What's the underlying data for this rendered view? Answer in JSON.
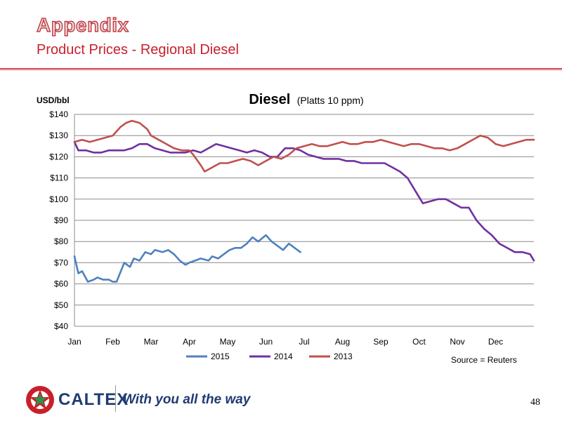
{
  "header": {
    "title": "Appendix",
    "subtitle": "Product Prices - Regional Diesel"
  },
  "chart_data": {
    "type": "line",
    "title": "Diesel",
    "title_note": "(Platts 10 ppm)",
    "ylabel": "USD/bbl",
    "ylim": [
      40,
      140
    ],
    "y_ticks": [
      "$40",
      "$50",
      "$60",
      "$70",
      "$80",
      "$90",
      "$100",
      "$110",
      "$120",
      "$130",
      "$140"
    ],
    "x_ticks": [
      "Jan",
      "Feb",
      "Mar",
      "Apr",
      "May",
      "Jun",
      "Jul",
      "Aug",
      "Sep",
      "Oct",
      "Nov",
      "Dec"
    ],
    "x_unit": "month (0 = start of Jan, 12 = end of Dec)",
    "source_note": "Source = Reuters",
    "grid": "horizontal",
    "legend": "bottom",
    "series": [
      {
        "name": "2015",
        "color": "#4f81bd",
        "x": [
          0,
          0.1,
          0.2,
          0.35,
          0.5,
          0.6,
          0.75,
          0.9,
          1.0,
          1.1,
          1.3,
          1.45,
          1.55,
          1.7,
          1.85,
          2.0,
          2.1,
          2.3,
          2.45,
          2.6,
          2.75,
          2.9,
          3.0,
          3.15,
          3.3,
          3.5,
          3.6,
          3.75,
          3.9,
          4.05,
          4.2,
          4.35,
          4.5,
          4.65,
          4.8,
          5.0,
          5.15,
          5.3,
          5.45,
          5.6,
          5.75,
          5.9
        ],
        "values": [
          73,
          65,
          66,
          61,
          62,
          63,
          62,
          62,
          61,
          61,
          70,
          68,
          72,
          71,
          75,
          74,
          76,
          75,
          76,
          74,
          71,
          69,
          70,
          71,
          72,
          71,
          73,
          72,
          74,
          76,
          77,
          77,
          79,
          82,
          80,
          83,
          80,
          78,
          76,
          79,
          77,
          75
        ]
      },
      {
        "name": "2014",
        "color": "#7030a0",
        "x": [
          0,
          0.1,
          0.3,
          0.5,
          0.7,
          0.9,
          1.1,
          1.3,
          1.5,
          1.7,
          1.9,
          2.1,
          2.3,
          2.5,
          2.7,
          2.9,
          3.1,
          3.3,
          3.5,
          3.7,
          3.9,
          4.1,
          4.3,
          4.5,
          4.7,
          4.9,
          5.1,
          5.3,
          5.5,
          5.7,
          5.9,
          6.1,
          6.3,
          6.5,
          6.7,
          6.9,
          7.1,
          7.3,
          7.5,
          7.7,
          7.9,
          8.1,
          8.3,
          8.5,
          8.7,
          8.9,
          9.1,
          9.3,
          9.5,
          9.7,
          9.9,
          10.1,
          10.3,
          10.5,
          10.7,
          10.9,
          11.1,
          11.3,
          11.5,
          11.7,
          11.9,
          12.0
        ],
        "values": [
          127,
          123,
          123,
          122,
          122,
          123,
          123,
          123,
          124,
          126,
          126,
          124,
          123,
          122,
          122,
          122,
          123,
          122,
          124,
          126,
          125,
          124,
          123,
          122,
          123,
          122,
          120,
          120,
          124,
          124,
          123,
          121,
          120,
          119,
          119,
          119,
          118,
          118,
          117,
          117,
          117,
          117,
          115,
          113,
          110,
          104,
          98,
          99,
          100,
          100,
          98,
          96,
          96,
          90,
          86,
          83,
          79,
          77,
          75,
          75,
          74,
          71
        ]
      },
      {
        "name": "2013",
        "color": "#c0504d",
        "x": [
          0,
          0.2,
          0.4,
          0.6,
          0.8,
          1.0,
          1.2,
          1.35,
          1.5,
          1.7,
          1.9,
          2.0,
          2.2,
          2.4,
          2.6,
          2.8,
          3.0,
          3.1,
          3.3,
          3.4,
          3.6,
          3.8,
          4.0,
          4.2,
          4.4,
          4.6,
          4.8,
          5.0,
          5.2,
          5.4,
          5.6,
          5.8,
          6.0,
          6.2,
          6.4,
          6.6,
          6.8,
          7.0,
          7.2,
          7.4,
          7.6,
          7.8,
          8.0,
          8.2,
          8.4,
          8.6,
          8.8,
          9.0,
          9.2,
          9.4,
          9.6,
          9.8,
          10.0,
          10.2,
          10.4,
          10.6,
          10.8,
          11.0,
          11.2,
          11.4,
          11.6,
          11.8,
          12.0
        ],
        "values": [
          127,
          128,
          127,
          128,
          129,
          130,
          134,
          136,
          137,
          136,
          133,
          130,
          128,
          126,
          124,
          123,
          123,
          121,
          116,
          113,
          115,
          117,
          117,
          118,
          119,
          118,
          116,
          118,
          120,
          119,
          121,
          124,
          125,
          126,
          125,
          125,
          126,
          127,
          126,
          126,
          127,
          127,
          128,
          127,
          126,
          125,
          126,
          126,
          125,
          124,
          124,
          123,
          124,
          126,
          128,
          130,
          129,
          126,
          125,
          126,
          127,
          128,
          128
        ]
      }
    ]
  },
  "footer": {
    "brand": "CALTEX",
    "tagline": "With you all the way",
    "page_number": "48"
  }
}
